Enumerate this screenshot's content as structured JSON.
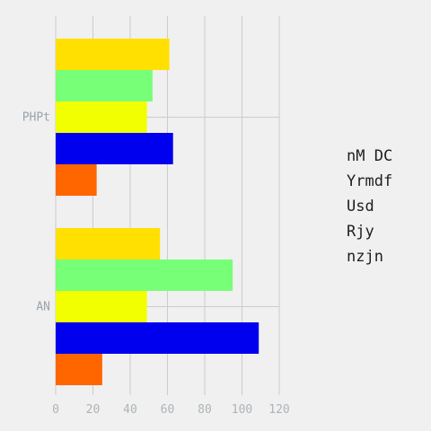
{
  "chart_data": {
    "type": "bar",
    "orientation": "horizontal",
    "categories": [
      "PHPt",
      "AN"
    ],
    "series": [
      {
        "name": "nM DC",
        "color": "#ffe000",
        "values": [
          61,
          56
        ]
      },
      {
        "name": "Yrmdf",
        "color": "#77ff77",
        "values": [
          52,
          95
        ]
      },
      {
        "name": "Usd",
        "color": "#f2ff00",
        "values": [
          49,
          49
        ]
      },
      {
        "name": "Rjy",
        "color": "#0000ee",
        "values": [
          63,
          109
        ]
      },
      {
        "name": "nzjn",
        "color": "#ff6600",
        "values": [
          22,
          25
        ]
      }
    ],
    "xticks": [
      "0",
      "20",
      "40",
      "60",
      "80",
      "100",
      "120"
    ],
    "xlim": [
      0,
      120
    ],
    "grid": true,
    "legend_position": "right",
    "title": "",
    "xlabel": "",
    "ylabel": ""
  }
}
